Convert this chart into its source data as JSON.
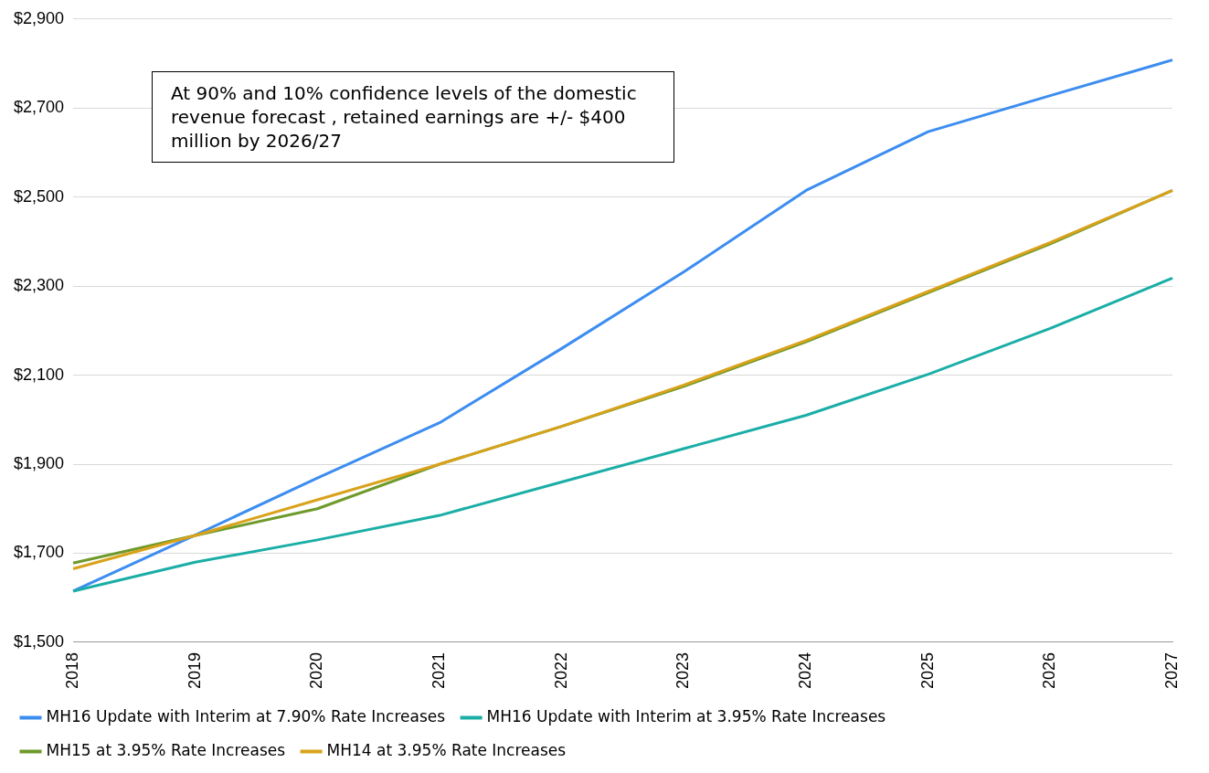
{
  "chart_data": {
    "type": "line",
    "categories": [
      "2018",
      "2019",
      "2020",
      "2021",
      "2022",
      "2023",
      "2024",
      "2025",
      "2026",
      "2027"
    ],
    "series": [
      {
        "name": "MH16 Update with Interim at 7.90% Rate Increases",
        "color": "#3c8df0",
        "values": [
          1615,
          1741,
          1869,
          1993,
          2160,
          2332,
          2515,
          2647,
          2728,
          2808
        ]
      },
      {
        "name": "MH16 Update with Interim at 3.95% Rate Increases",
        "color": "#1aaea6",
        "values": [
          1615,
          1680,
          1730,
          1785,
          1860,
          1935,
          2010,
          2102,
          2205,
          2318
        ]
      },
      {
        "name": "MH15 at 3.95% Rate Increases",
        "color": "#6e9a2a",
        "values": [
          1678,
          1740,
          1800,
          1900,
          1985,
          2075,
          2175,
          2285,
          2395,
          2515
        ]
      },
      {
        "name": "MH14 at 3.95% Rate Increases",
        "color": "#d9a21b",
        "values": [
          1665,
          1740,
          1820,
          1900,
          1985,
          2078,
          2178,
          2288,
          2398,
          2515
        ]
      }
    ],
    "ylim": [
      1500,
      2900
    ],
    "yticks": [
      {
        "value": 1500,
        "label": "$1,500"
      },
      {
        "value": 1700,
        "label": "$1,700"
      },
      {
        "value": 1900,
        "label": "$1,900"
      },
      {
        "value": 2100,
        "label": "$2,100"
      },
      {
        "value": 2300,
        "label": "$2,300"
      },
      {
        "value": 2500,
        "label": "$2,500"
      },
      {
        "value": 2700,
        "label": "$2,700"
      },
      {
        "value": 2900,
        "label": "$2,900"
      }
    ],
    "grid": "y",
    "legend": "bottom",
    "marker": "none",
    "line_style": "solid",
    "annotations": [
      "At 90% and 10% confidence levels of the domestic revenue forecast , retained earnings are +/- $400 million by 2026/27"
    ]
  }
}
